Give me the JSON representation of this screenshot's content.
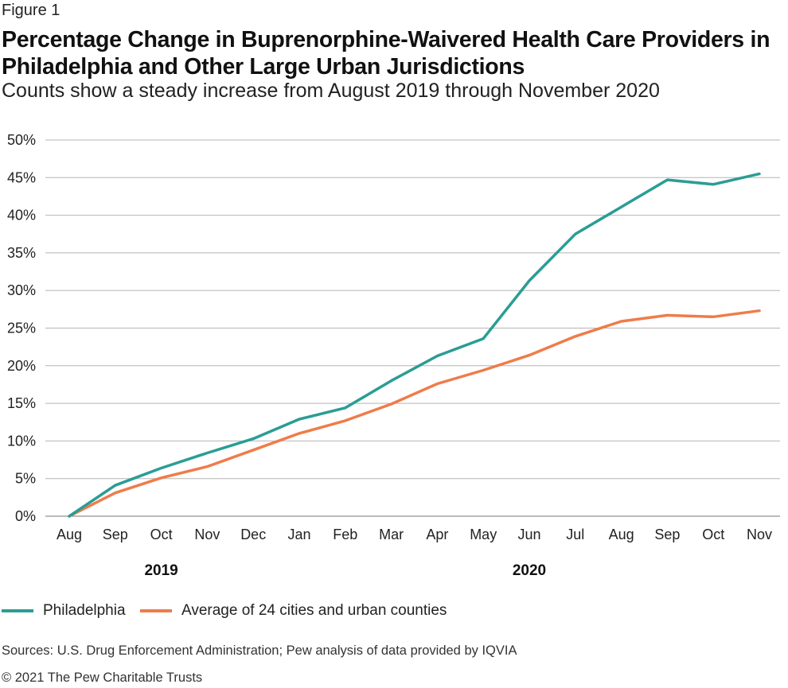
{
  "figure_label": "Figure 1",
  "chart_data": {
    "type": "line",
    "title": "Percentage Change in Buprenorphine-Waivered Health Care Providers in Philadelphia and Other Large Urban Jurisdictions",
    "subtitle": "Counts show a steady increase from August 2019 through November 2020",
    "categories": [
      "Aug",
      "Sep",
      "Oct",
      "Nov",
      "Dec",
      "Jan",
      "Feb",
      "Mar",
      "Apr",
      "May",
      "Jun",
      "Jul",
      "Aug",
      "Sep",
      "Oct",
      "Nov"
    ],
    "year_labels": [
      {
        "label": "2019",
        "at_index": 2
      },
      {
        "label": "2020",
        "at_index": 10
      }
    ],
    "y_ticks": [
      "0%",
      "5%",
      "10%",
      "15%",
      "20%",
      "25%",
      "30%",
      "35%",
      "40%",
      "45%",
      "50%"
    ],
    "ylim": [
      0,
      50
    ],
    "grid": true,
    "legend_position": "bottom-left",
    "series": [
      {
        "name": "Philadelphia",
        "color": "#2a9d94",
        "values": [
          0,
          4.1,
          6.4,
          8.4,
          10.3,
          12.9,
          14.4,
          18.0,
          21.3,
          23.6,
          31.3,
          37.5,
          41.1,
          44.7,
          44.1,
          45.5
        ]
      },
      {
        "name": "Average of 24 cities and urban counties",
        "color": "#ef7c4a",
        "values": [
          0,
          3.1,
          5.1,
          6.6,
          8.8,
          11.0,
          12.7,
          14.9,
          17.6,
          19.4,
          21.4,
          23.9,
          25.9,
          26.7,
          26.5,
          27.3
        ]
      }
    ]
  },
  "source": "Sources: U.S. Drug Enforcement Administration; Pew analysis of data provided by IQVIA",
  "copyright": "© 2021 The Pew Charitable Trusts"
}
